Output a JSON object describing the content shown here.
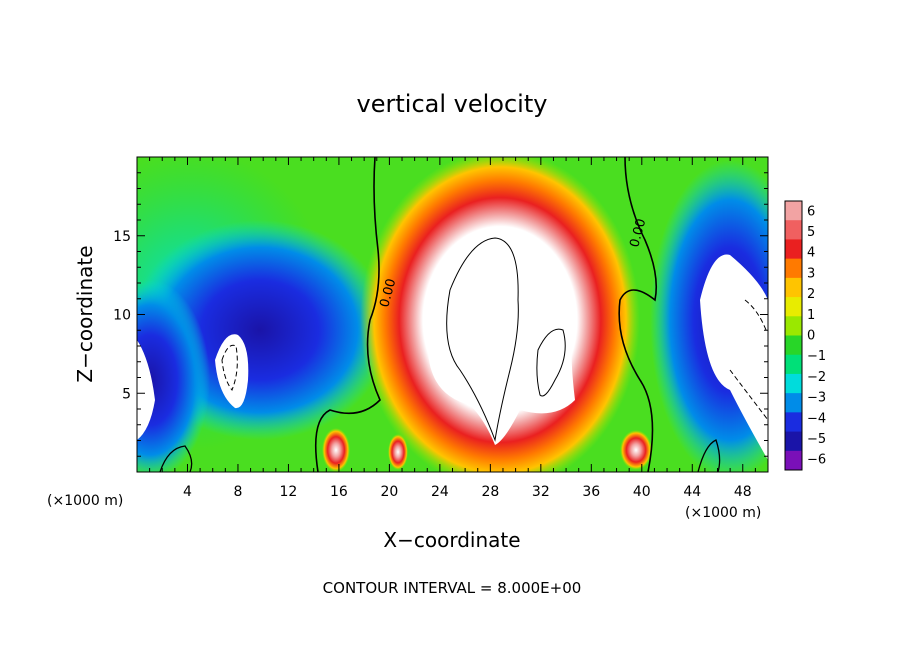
{
  "chart_data": {
    "type": "heatmap",
    "title": "vertical velocity",
    "xlabel": "X−coordinate",
    "ylabel": "Z−coordinate",
    "x_unit_label_left": "(×1000 m)",
    "x_unit_label_right": "(×1000 m)",
    "xlim": [
      0,
      50
    ],
    "ylim": [
      0,
      20
    ],
    "x_ticks": [
      4,
      8,
      12,
      16,
      20,
      24,
      28,
      32,
      36,
      40,
      44,
      48
    ],
    "y_ticks": [
      5,
      10,
      15
    ],
    "footer": "CONTOUR INTERVAL = 8.000E+00",
    "contour_labels": [
      {
        "text": "0.00",
        "x": 19.8,
        "z": 10.5
      },
      {
        "text": "0.00",
        "x": 40.0,
        "z": 14.5
      }
    ],
    "colorbar": {
      "levels": [
        6,
        5,
        4,
        3,
        2,
        1,
        0,
        -1,
        -2,
        -3,
        -4,
        -5,
        -6
      ],
      "colors": [
        "#f2a3a3",
        "#f06060",
        "#ea2020",
        "#ff7a00",
        "#ffc400",
        "#e8ec00",
        "#9ae800",
        "#28d628",
        "#00e078",
        "#00dcdc",
        "#008ce8",
        "#1a2ce0",
        "#1a14a8",
        "#7a10b8"
      ]
    },
    "features": [
      {
        "name": "central-updraft",
        "x": 28,
        "z": 8.5,
        "value": "max"
      },
      {
        "name": "right-downdraft",
        "x": 46,
        "z": 8,
        "value": "min"
      },
      {
        "name": "left-downdraft",
        "x": 9,
        "z": 9,
        "value": "min"
      }
    ]
  }
}
